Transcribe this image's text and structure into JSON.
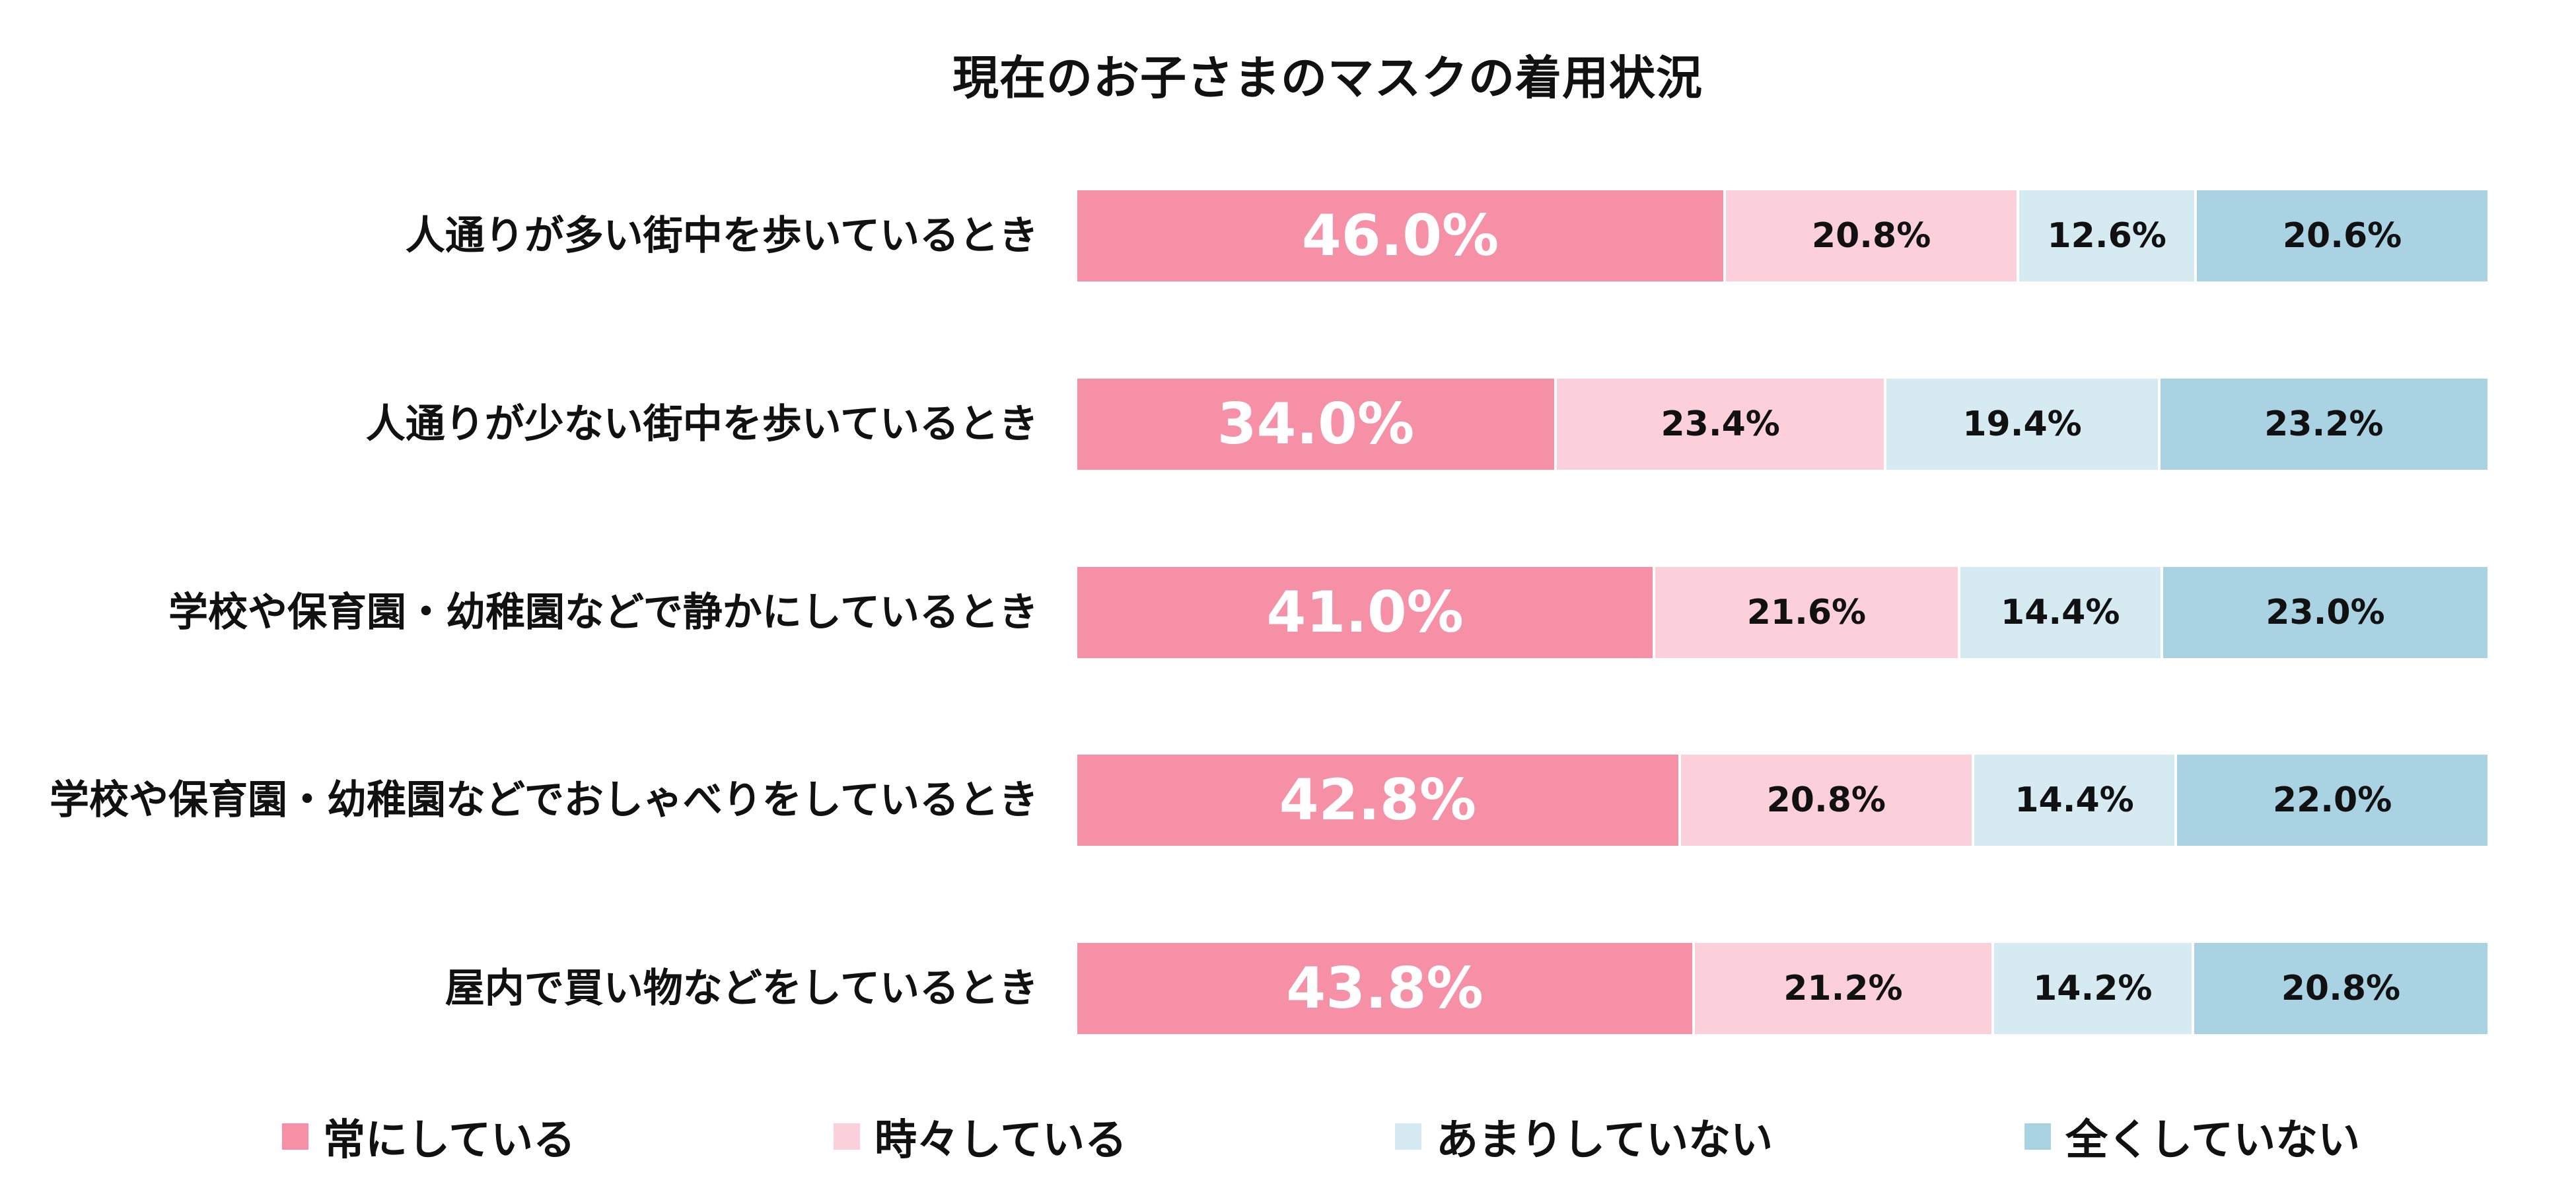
{
  "chart_data": {
    "type": "bar",
    "orientation": "horizontal",
    "stacked": true,
    "title": "現在のお子さまのマスクの着用状況",
    "categories": [
      "人通りが多い街中を歩いているとき",
      "人通りが少ない街中を歩いているとき",
      "学校や保育園・幼稚園などで静かにしているとき",
      "学校や保育園・幼稚園などでおしゃべりをしているとき",
      "屋内で買い物などをしているとき"
    ],
    "series": [
      {
        "name": "常にしている",
        "color": "#F590A7",
        "values": [
          46.0,
          34.0,
          41.0,
          42.8,
          43.8
        ]
      },
      {
        "name": "時々している",
        "color": "#FCD0DA",
        "values": [
          20.8,
          23.4,
          21.6,
          20.8,
          21.2
        ]
      },
      {
        "name": "あまりしていない",
        "color": "#D5EAF1",
        "values": [
          12.6,
          19.4,
          14.4,
          14.4,
          14.2
        ]
      },
      {
        "name": "全くしていない",
        "color": "#A9D3E3",
        "values": [
          20.6,
          23.2,
          23.0,
          22.0,
          20.8
        ]
      }
    ],
    "data_labels": [
      [
        "46.0%",
        "20.8%",
        "12.6%",
        "20.6%"
      ],
      [
        "34.0%",
        "23.4%",
        "19.4%",
        "23.2%"
      ],
      [
        "41.0%",
        "21.6%",
        "14.4%",
        "23.0%"
      ],
      [
        "42.8%",
        "20.8%",
        "14.4%",
        "22.0%"
      ],
      [
        "43.8%",
        "21.2%",
        "14.2%",
        "20.8%"
      ]
    ],
    "xlim": [
      0,
      100
    ],
    "grid": false,
    "legend": "bottom"
  }
}
